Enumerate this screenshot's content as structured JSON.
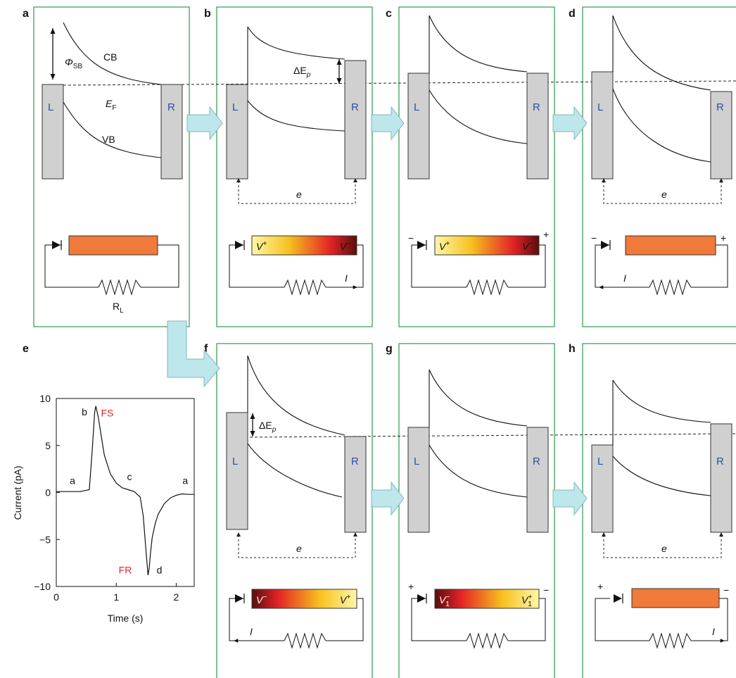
{
  "panels": {
    "a": {
      "label": "a",
      "left": "L",
      "right": "R",
      "phi": "Φ",
      "phi_sub": "SB",
      "cb": "CB",
      "ef": "E",
      "ef_sub": "F",
      "vb": "VB",
      "rl": "R",
      "rl_sub": "L"
    },
    "b": {
      "label": "b",
      "left": "L",
      "right": "R",
      "dE": "ΔE",
      "dE_sub": "p",
      "e": "e",
      "v_plus": "V",
      "v_plus_sup": "+",
      "v_minus": "V",
      "v_minus_sup": "−",
      "current": "I"
    },
    "c": {
      "label": "c",
      "left": "L",
      "right": "R",
      "v_plus": "V",
      "v_plus_sup": "+",
      "v_minus": "V",
      "v_minus_sup": "−",
      "sign_left": "−",
      "sign_right": "+"
    },
    "d": {
      "label": "d",
      "left": "L",
      "right": "R",
      "e": "e",
      "sign_left": "−",
      "sign_right": "+",
      "current": "I"
    },
    "f": {
      "label": "f",
      "left": "L",
      "right": "R",
      "dE": "ΔE",
      "dE_sub": "p",
      "e": "e",
      "v_minus": "V",
      "v_minus_sup": "−",
      "v_plus": "V",
      "v_plus_sup": "+",
      "current": "I"
    },
    "g": {
      "label": "g",
      "left": "L",
      "right": "R",
      "v1_minus": "V",
      "v1_minus_sup": "−",
      "v1_minus_sub": "1",
      "v1_plus": "V",
      "v1_plus_sup": "+",
      "v1_plus_sub": "1",
      "sign_left": "+",
      "sign_right": "−"
    },
    "h": {
      "label": "h",
      "left": "L",
      "right": "R",
      "e": "e",
      "sign_left": "+",
      "sign_right": "−",
      "current": "I"
    }
  },
  "chart_data": {
    "type": "line",
    "panel_label": "e",
    "xlabel": "Time (s)",
    "ylabel": "Current (pA)",
    "xlim": [
      0,
      2.3
    ],
    "ylim": [
      -10,
      10
    ],
    "xticks": [
      0,
      1,
      2
    ],
    "yticks": [
      10,
      5,
      0,
      -5,
      -10
    ],
    "xtick_labels": [
      "0",
      "1",
      "2"
    ],
    "ytick_labels": [
      "10",
      "5",
      "0",
      "−5",
      "−10"
    ],
    "series": [
      {
        "x": [
          0,
          0.2,
          0.4,
          0.55,
          0.6,
          0.64,
          0.66,
          0.7,
          0.75,
          0.8,
          0.9,
          1.0,
          1.1,
          1.2,
          1.3,
          1.4,
          1.45,
          1.5,
          1.53,
          1.55,
          1.57,
          1.6,
          1.65,
          1.7,
          1.8,
          1.9,
          2.0,
          2.1,
          2.2,
          2.3
        ],
        "y": [
          0.1,
          0.1,
          0.1,
          0.3,
          4.5,
          8.5,
          9.2,
          8.0,
          6.0,
          4.0,
          2.0,
          1.0,
          0.5,
          0.3,
          0.1,
          -0.5,
          -2.5,
          -6.5,
          -8.8,
          -8.0,
          -6.5,
          -4.8,
          -3.3,
          -2.3,
          -1.2,
          -0.6,
          -0.3,
          -0.15,
          -0.2,
          -0.2
        ]
      }
    ],
    "annotations": [
      {
        "text": "a",
        "x": 0.27,
        "y": 0.9,
        "color": "#111111"
      },
      {
        "text": "b",
        "x": 0.47,
        "y": 8.2,
        "color": "#111111"
      },
      {
        "text": "FS",
        "x": 0.85,
        "y": 8.1,
        "color": "#e0262b"
      },
      {
        "text": "c",
        "x": 1.22,
        "y": 1.3,
        "color": "#111111"
      },
      {
        "text": "FR",
        "x": 1.15,
        "y": -8.6,
        "color": "#e0262b"
      },
      {
        "text": "d",
        "x": 1.72,
        "y": -8.6,
        "color": "#111111"
      },
      {
        "text": "a",
        "x": 2.15,
        "y": 0.9,
        "color": "#111111"
      }
    ]
  },
  "colors": {
    "frame": "#2e9a4c",
    "electrode": "#d0d0d0",
    "arrow": "#bde7ea",
    "bar_orange": "#f07a3a",
    "red_label": "#e0262b",
    "electrode_label": "#2b4fa0"
  }
}
